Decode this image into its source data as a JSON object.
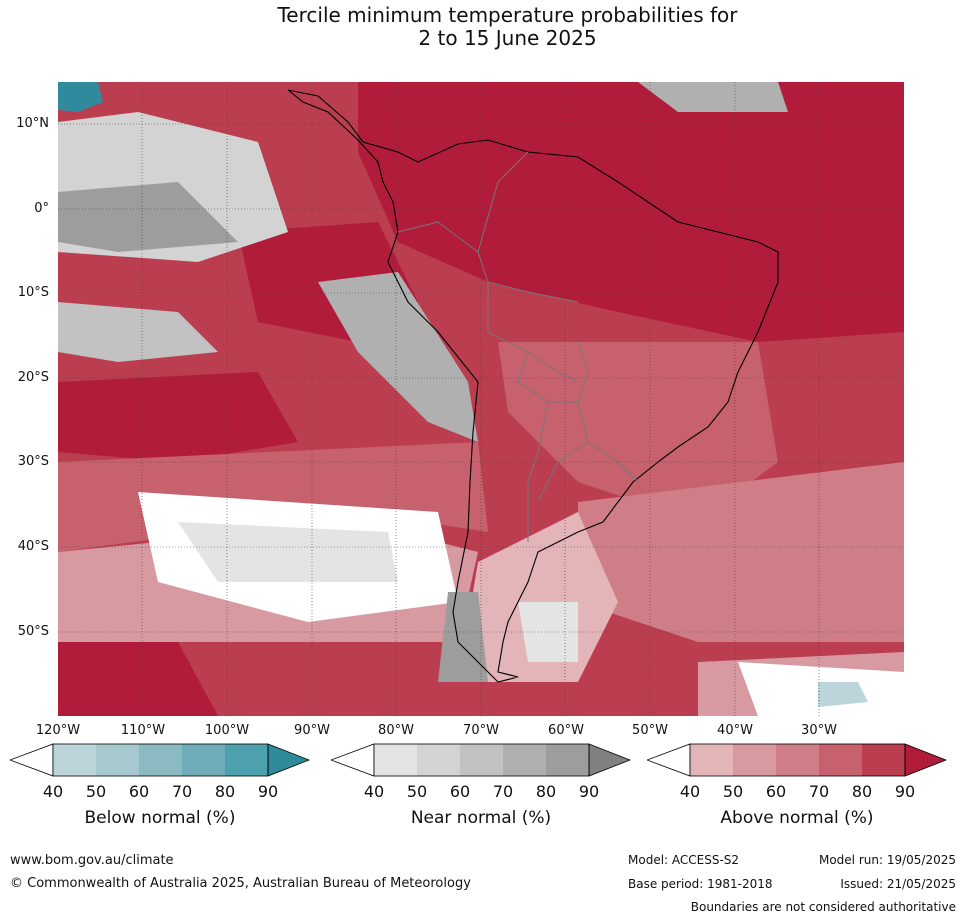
{
  "title_line1": "Tercile minimum temperature probabilities for",
  "title_line2": "2 to 15 June 2025",
  "map": {
    "lat_labels": [
      "10°N",
      "0°",
      "10°S",
      "20°S",
      "30°S",
      "40°S",
      "50°S"
    ],
    "lon_labels": [
      "120°W",
      "110°W",
      "100°W",
      "90°W",
      "80°W",
      "70°W",
      "60°W",
      "50°W",
      "40°W",
      "30°W"
    ]
  },
  "colorbars": {
    "below": {
      "title": "Below normal (%)",
      "ticks": [
        "40",
        "50",
        "60",
        "70",
        "80",
        "90"
      ],
      "colors": [
        "#bcd5da",
        "#a6c9cf",
        "#8cbac3",
        "#6eacb8",
        "#4da0ae",
        "#2f8b9c"
      ]
    },
    "near": {
      "title": "Near normal (%)",
      "ticks": [
        "40",
        "50",
        "60",
        "70",
        "80",
        "90"
      ],
      "colors": [
        "#e4e4e4",
        "#d3d3d3",
        "#c2c2c2",
        "#b0b0b0",
        "#9d9d9d",
        "#808080"
      ]
    },
    "above": {
      "title": "Above normal (%)",
      "ticks": [
        "40",
        "50",
        "60",
        "70",
        "80",
        "90"
      ],
      "colors": [
        "#e3b4b8",
        "#d89aa1",
        "#cf7d86",
        "#c6616d",
        "#ba3d50",
        "#b01c3a"
      ]
    }
  },
  "footer": {
    "website": "www.bom.gov.au/climate",
    "copyright": "© Commonwealth of Australia 2025, Australian Bureau of Meteorology",
    "model": "Model: ACCESS-S2",
    "base_period": "Base period: 1981-2018",
    "model_run": "Model run: 19/05/2025",
    "issued": "Issued: 21/05/2025",
    "disclaimer": "Boundaries are not considered authoritative"
  }
}
